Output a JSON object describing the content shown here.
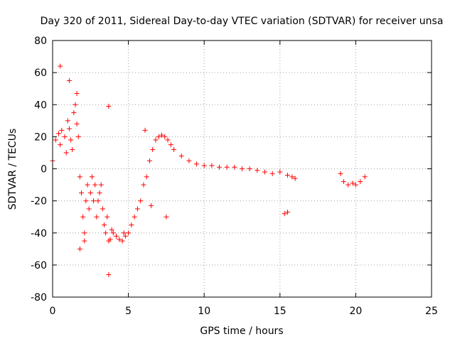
{
  "chart_data": {
    "type": "scatter",
    "title": "Day 320 of 2011, Sidereal Day-to-day VTEC variation (SDTVAR) for receiver unsa",
    "xlabel": "GPS time / hours",
    "ylabel": "SDTVAR / TECUs",
    "xlim": [
      0,
      25
    ],
    "ylim": [
      -80,
      80
    ],
    "xticks": [
      0,
      5,
      10,
      15,
      20,
      25
    ],
    "yticks": [
      -80,
      -60,
      -40,
      -20,
      0,
      20,
      40,
      60,
      80
    ],
    "xtick_labels": [
      "0",
      "5",
      "10",
      "15",
      "20",
      "25"
    ],
    "ytick_labels": [
      "-80",
      "-60",
      "-40",
      "-20",
      "0",
      "20",
      "40",
      "60",
      "80"
    ],
    "grid": true,
    "marker": "+",
    "color": "#ff0000",
    "series": [
      {
        "name": "SDTVAR",
        "x": [
          0.0,
          0.2,
          0.4,
          0.5,
          0.6,
          0.8,
          0.9,
          1.0,
          1.1,
          1.2,
          1.3,
          1.4,
          1.5,
          1.6,
          1.7,
          1.8,
          1.9,
          2.0,
          2.1,
          2.2,
          2.3,
          2.4,
          2.5,
          2.6,
          2.7,
          2.8,
          2.9,
          3.0,
          3.1,
          3.2,
          3.3,
          3.4,
          3.5,
          3.6,
          3.7,
          3.8,
          3.9,
          4.0,
          4.2,
          4.4,
          4.6,
          4.8,
          5.0,
          5.2,
          5.4,
          5.6,
          5.8,
          6.0,
          6.2,
          6.4,
          6.6,
          6.8,
          7.0,
          7.2,
          7.4,
          7.6,
          7.8,
          8.0,
          8.5,
          9.0,
          9.5,
          10.0,
          10.5,
          11.0,
          11.5,
          12.0,
          12.5,
          13.0,
          13.5,
          14.0,
          14.5,
          15.0,
          15.5,
          15.8,
          16.0,
          19.0,
          19.2,
          19.5,
          19.8,
          20.0,
          20.3,
          20.6,
          0.5,
          1.1,
          1.6,
          1.8,
          2.1,
          3.7,
          3.7,
          4.7,
          6.1,
          6.5,
          7.5,
          15.3,
          15.5
        ],
        "y": [
          5,
          18,
          22,
          15,
          24,
          20,
          10,
          30,
          25,
          18,
          12,
          35,
          40,
          28,
          20,
          -5,
          -15,
          -30,
          -40,
          -20,
          -10,
          -25,
          -15,
          -5,
          -20,
          -10,
          -30,
          -20,
          -15,
          -10,
          -25,
          -35,
          -40,
          -30,
          -45,
          -44,
          -38,
          -40,
          -42,
          -44,
          -45,
          -42,
          -40,
          -35,
          -30,
          -25,
          -20,
          -10,
          -5,
          5,
          12,
          18,
          20,
          21,
          20,
          18,
          15,
          12,
          8,
          5,
          3,
          2,
          2,
          1,
          1,
          1,
          0,
          0,
          -1,
          -2,
          -3,
          -2,
          -4,
          -5,
          -6,
          -3,
          -8,
          -10,
          -9,
          -10,
          -8,
          -5,
          64,
          55,
          47,
          -50,
          -45,
          39,
          -66,
          -40,
          24,
          -23,
          -30,
          -28,
          -27
        ]
      }
    ]
  }
}
